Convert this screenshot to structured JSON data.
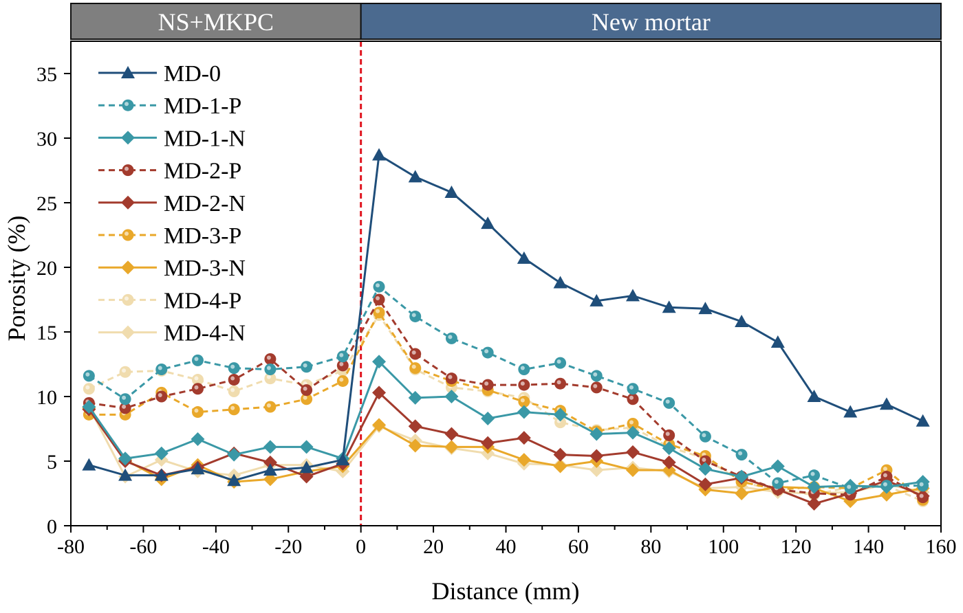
{
  "chart_data": {
    "type": "line",
    "xlabel": "Distance (mm)",
    "ylabel": "Porosity (%)",
    "xlim": [
      -80,
      160
    ],
    "ylim": [
      0,
      37
    ],
    "xticks": [
      -80,
      -60,
      -40,
      -20,
      0,
      20,
      40,
      60,
      80,
      100,
      120,
      140,
      160
    ],
    "yticks": [
      0,
      5,
      10,
      15,
      20,
      25,
      30,
      35
    ],
    "grid": false,
    "legend_position": "top-left",
    "regions": [
      {
        "label": "NS+MKPC",
        "from": -80,
        "to": 0,
        "color": "#7f7f7f"
      },
      {
        "label": "New mortar",
        "from": 0,
        "to": 160,
        "color": "#4b6a8f"
      }
    ],
    "boundary_line": {
      "x": 0,
      "color": "#e0141e",
      "style": "dashed"
    },
    "x": [
      -75,
      -65,
      -55,
      -45,
      -35,
      -25,
      -15,
      -5,
      5,
      15,
      25,
      35,
      45,
      55,
      65,
      75,
      85,
      95,
      105,
      115,
      125,
      135,
      145,
      155
    ],
    "series": [
      {
        "name": "MD-0",
        "color": "#1f4e7a",
        "dash": false,
        "marker": "triangle",
        "values": [
          4.7,
          3.9,
          3.9,
          4.4,
          3.5,
          4.3,
          4.5,
          5.1,
          28.7,
          27.0,
          25.8,
          23.4,
          20.7,
          18.8,
          17.4,
          17.8,
          16.9,
          16.8,
          15.8,
          14.2,
          10.0,
          8.8,
          9.4,
          8.1
        ]
      },
      {
        "name": "MD-1-P",
        "color": "#3a98a6",
        "dash": true,
        "marker": "circle",
        "values": [
          11.6,
          9.8,
          12.1,
          12.8,
          12.2,
          12.1,
          12.3,
          13.1,
          18.5,
          16.2,
          14.5,
          13.4,
          12.1,
          12.6,
          11.6,
          10.6,
          9.5,
          6.9,
          5.5,
          3.3,
          3.9,
          2.9,
          3.1,
          3.1
        ]
      },
      {
        "name": "MD-1-N",
        "color": "#3a98a6",
        "dash": false,
        "marker": "diamond",
        "values": [
          9.2,
          5.2,
          5.6,
          6.7,
          5.5,
          6.1,
          6.1,
          5.2,
          12.7,
          9.9,
          10.0,
          8.3,
          8.8,
          8.6,
          7.1,
          7.2,
          6.0,
          4.4,
          3.8,
          4.6,
          3.0,
          3.1,
          3.0,
          3.4
        ]
      },
      {
        "name": "MD-2-P",
        "color": "#a33b2d",
        "dash": true,
        "marker": "circle",
        "values": [
          9.5,
          9.1,
          10.0,
          10.6,
          11.3,
          12.9,
          10.5,
          12.4,
          17.5,
          13.3,
          11.4,
          10.9,
          10.9,
          11.0,
          10.7,
          9.8,
          7.0,
          5.0,
          3.8,
          2.8,
          2.5,
          2.4,
          3.8,
          2.2
        ]
      },
      {
        "name": "MD-2-N",
        "color": "#a33b2d",
        "dash": false,
        "marker": "diamond",
        "values": [
          9.0,
          5.0,
          3.9,
          4.5,
          5.6,
          4.9,
          3.8,
          4.8,
          10.3,
          7.7,
          7.1,
          6.4,
          6.8,
          5.5,
          5.4,
          5.7,
          4.9,
          3.2,
          3.7,
          2.8,
          1.7,
          2.5,
          3.5,
          2.3
        ]
      },
      {
        "name": "MD-3-P",
        "color": "#e9a82a",
        "dash": true,
        "marker": "circle",
        "values": [
          8.6,
          8.6,
          10.3,
          8.8,
          9.0,
          9.2,
          9.8,
          11.2,
          16.5,
          12.2,
          11.2,
          10.5,
          9.6,
          8.9,
          7.3,
          7.9,
          6.3,
          5.4,
          3.4,
          2.8,
          3.0,
          2.9,
          4.3,
          2.0
        ]
      },
      {
        "name": "MD-3-N",
        "color": "#e9a82a",
        "dash": false,
        "marker": "diamond",
        "values": [
          9.1,
          5.1,
          3.6,
          4.7,
          3.4,
          3.6,
          4.2,
          4.6,
          7.8,
          6.2,
          6.1,
          6.1,
          5.1,
          4.6,
          5.0,
          4.3,
          4.3,
          2.8,
          2.5,
          3.0,
          2.9,
          1.9,
          2.4,
          2.9
        ]
      },
      {
        "name": "MD-4-P",
        "color": "#f0dcae",
        "dash": true,
        "marker": "circle",
        "values": [
          10.6,
          11.9,
          12.0,
          11.3,
          10.4,
          11.4,
          10.9,
          12.0,
          16.3,
          12.1,
          10.7,
          10.4,
          9.9,
          8.0,
          7.4,
          7.6,
          6.1,
          5.2,
          3.4,
          2.7,
          2.4,
          3.0,
          3.1,
          1.9
        ]
      },
      {
        "name": "MD-4-N",
        "color": "#f0dcae",
        "dash": false,
        "marker": "diamond",
        "values": [
          9.2,
          3.8,
          5.1,
          4.2,
          3.9,
          4.7,
          4.7,
          4.2,
          7.7,
          6.6,
          6.0,
          5.6,
          4.8,
          4.7,
          4.3,
          4.5,
          4.2,
          2.9,
          3.0,
          2.6,
          2.5,
          2.6,
          3.2,
          2.6
        ]
      }
    ]
  }
}
